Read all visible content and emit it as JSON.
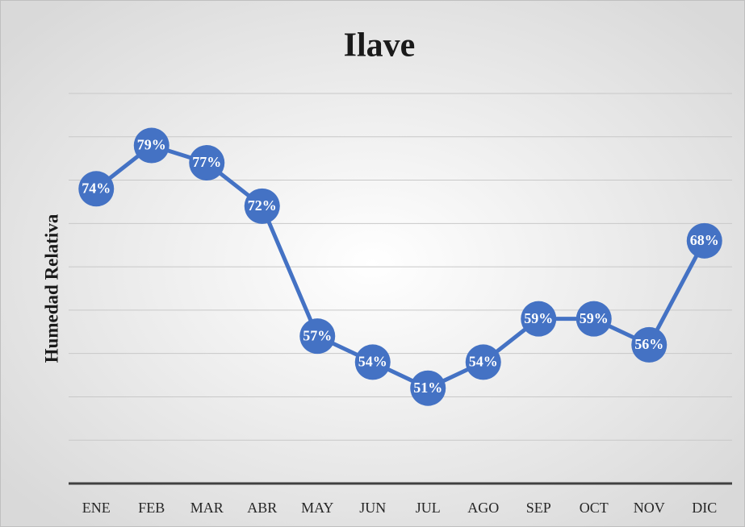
{
  "chart_data": {
    "type": "line",
    "title": "Ilave",
    "y_label": "Humedad Relativa",
    "categories": [
      "ENE",
      "FEB",
      "MAR",
      "ABR",
      "MAY",
      "JUN",
      "JUL",
      "AGO",
      "SEP",
      "OCT",
      "NOV",
      "DIC"
    ],
    "values": [
      74,
      79,
      77,
      72,
      57,
      54,
      51,
      54,
      59,
      59,
      56,
      68
    ],
    "value_labels": [
      "74%",
      "79%",
      "77%",
      "72%",
      "57%",
      "54%",
      "51%",
      "54%",
      "59%",
      "59%",
      "56%",
      "68%"
    ],
    "color": "#4472c4",
    "ylim": [
      40,
      85
    ],
    "yticks": [
      40,
      45,
      50,
      55,
      60,
      65,
      70,
      75,
      80,
      85
    ],
    "grid": true
  }
}
